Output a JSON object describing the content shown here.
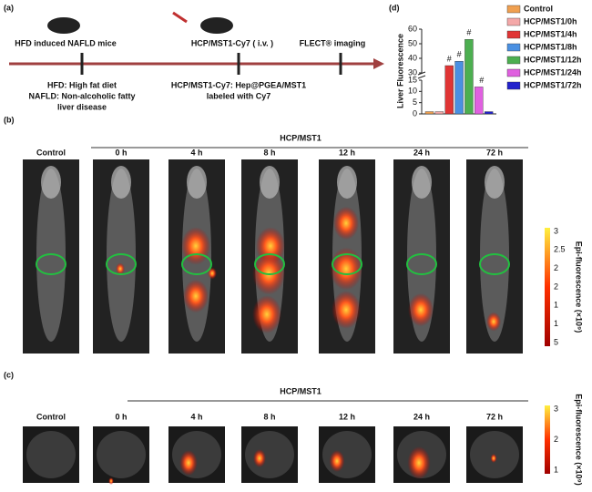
{
  "panel_labels": [
    "(a)",
    "(b)",
    "(c)",
    "(d)"
  ],
  "timeline": {
    "steps": [
      "HFD induced NAFLD mice",
      "HCP/MST1-Cy7 ( i.v. )",
      "FLECT® imaging"
    ],
    "notes": [
      "HFD: High fat diet",
      "NAFLD: Non-alcoholic fatty",
      "liver disease",
      "HCP/MST1-Cy7: Hep@PGEA/MST1",
      "labeled with Cy7"
    ]
  },
  "groups": [
    "Control",
    "0 h",
    "4 h",
    "8 h",
    "12 h",
    "24 h",
    "72 h"
  ],
  "group_title": "HCP/MST1",
  "colorbar_b": {
    "title": "Epi-fluorescence (×10⁹)",
    "labels": [
      "3",
      "2.5",
      "2",
      "2",
      "1",
      "1",
      "5"
    ]
  },
  "colorbar_c": {
    "title": "Epi-fluorescence (×10⁹)",
    "labels": [
      "3",
      "2",
      "1"
    ]
  },
  "chart_data": {
    "type": "bar",
    "y_label": "Liver Fluorescence",
    "series": [
      {
        "name": "Control",
        "color": "#f0a050",
        "values": [
          1
        ]
      },
      {
        "name": "HCP/MST1/0h",
        "color": "#f4a8a8",
        "values": [
          1
        ]
      },
      {
        "name": "HCP/MST1/4h",
        "color": "#e03535",
        "values": [
          35
        ]
      },
      {
        "name": "HCP/MST1/8h",
        "color": "#4a90e2",
        "values": [
          38
        ]
      },
      {
        "name": "HCP/MST1/12h",
        "color": "#4caf50",
        "values": [
          53
        ]
      },
      {
        "name": "HCP/MST1/24h",
        "color": "#e060e0",
        "values": [
          12
        ]
      },
      {
        "name": "HCP/MST1/72h",
        "color": "#2222cc",
        "values": [
          1
        ]
      }
    ],
    "annotations": [
      "#",
      "#",
      "#",
      "#"
    ],
    "ylim": [
      0,
      60
    ],
    "axis_break": [
      15,
      30
    ],
    "yticks": [
      0,
      5,
      10,
      15,
      30,
      40,
      50,
      60
    ]
  }
}
